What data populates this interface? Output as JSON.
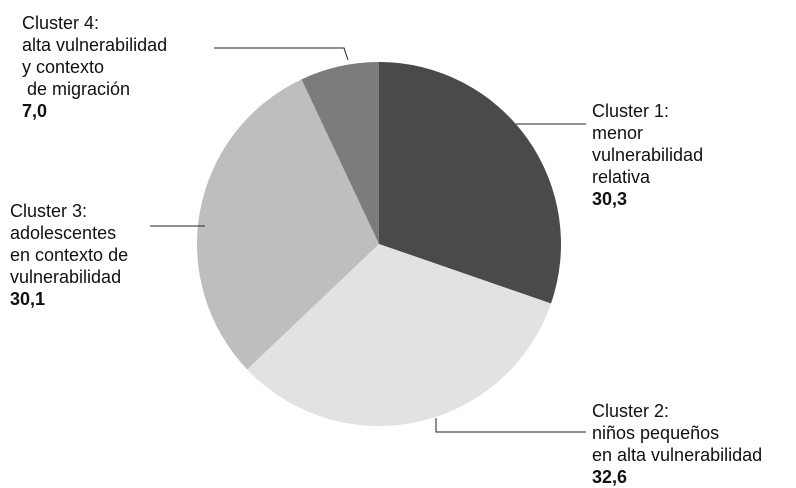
{
  "chart_data": {
    "type": "pie",
    "start_angle_deg": 0,
    "direction": "clockwise",
    "slices": [
      {
        "label_lines": [
          "Cluster 1:",
          "menor",
          "vulnerabilidad",
          "relativa"
        ],
        "value": 30.3,
        "value_label": "30,3",
        "color": "#4a4a4a"
      },
      {
        "label_lines": [
          "Cluster 2:",
          "niños pequeños",
          "en alta vulnerabilidad"
        ],
        "value": 32.6,
        "value_label": "32,6",
        "color": "#e2e2e2"
      },
      {
        "label_lines": [
          "Cluster 3:",
          "adolescentes",
          "en contexto de",
          "vulnerabilidad"
        ],
        "value": 30.1,
        "value_label": "30,1",
        "color": "#bebebe"
      },
      {
        "label_lines": [
          "Cluster 4:",
          "alta vulnerabilidad",
          "y contexto",
          " de migración"
        ],
        "value": 7.0,
        "value_label": "7,0",
        "color": "#7c7c7c"
      }
    ]
  }
}
